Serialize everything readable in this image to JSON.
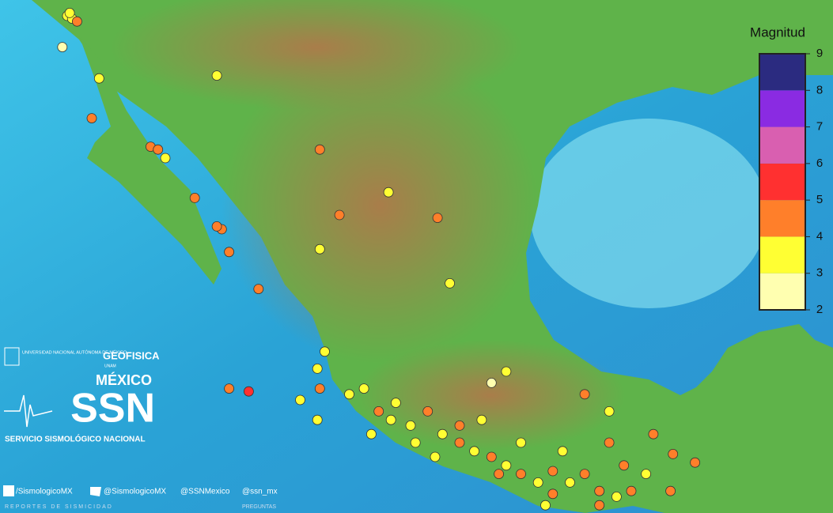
{
  "legend": {
    "title": "Magnitud",
    "lim": [
      2,
      9
    ],
    "ticks": [
      2,
      3,
      4,
      5,
      6,
      7,
      8,
      9
    ],
    "colors": [
      "#ffffb0",
      "#ffff33",
      "#ff7f2a",
      "#ff3030",
      "#d95fb0",
      "#8a2be2",
      "#2b2b80"
    ]
  },
  "logos": {
    "unam": "UNIVERSIDAD NACIONAL AUTÓNOMA DE MÉXICO",
    "geofisica": "GEOFISICA",
    "unam_short": "UNAM",
    "country": "MÉXICO",
    "ssn": "SSN",
    "ssn_name": "SERVICIO SISMOLÓGICO NACIONAL"
  },
  "footer": {
    "facebook": "/SismologicoMX",
    "twitter": "@SismologicoMX",
    "handle1": "@SSNMexico",
    "handle2": "@ssn_mx",
    "reports": "REPORTES DE SISMICIDAD",
    "questions": "PREGUNTAS"
  },
  "events": [
    {
      "lon": -117.0,
      "lat": 32.5,
      "mag": 3.2
    },
    {
      "lon": -116.8,
      "lat": 32.4,
      "mag": 3.5
    },
    {
      "lon": -116.6,
      "lat": 32.3,
      "mag": 4.1
    },
    {
      "lon": -116.9,
      "lat": 32.6,
      "mag": 3.0
    },
    {
      "lon": -117.2,
      "lat": 31.4,
      "mag": 2.5
    },
    {
      "lon": -115.7,
      "lat": 30.3,
      "mag": 3.3
    },
    {
      "lon": -110.9,
      "lat": 30.4,
      "mag": 3.4
    },
    {
      "lon": -116.0,
      "lat": 28.9,
      "mag": 4.2
    },
    {
      "lon": -113.6,
      "lat": 27.9,
      "mag": 4.3
    },
    {
      "lon": -113.3,
      "lat": 27.8,
      "mag": 4.1
    },
    {
      "lon": -113.0,
      "lat": 27.5,
      "mag": 3.6
    },
    {
      "lon": -106.7,
      "lat": 27.8,
      "mag": 4.2
    },
    {
      "lon": -111.8,
      "lat": 26.1,
      "mag": 4.0
    },
    {
      "lon": -110.7,
      "lat": 25.0,
      "mag": 4.3
    },
    {
      "lon": -110.9,
      "lat": 25.1,
      "mag": 4.5
    },
    {
      "lon": -110.4,
      "lat": 24.2,
      "mag": 4.1
    },
    {
      "lon": -109.2,
      "lat": 22.9,
      "mag": 4.4
    },
    {
      "lon": -105.9,
      "lat": 25.5,
      "mag": 4.0
    },
    {
      "lon": -103.9,
      "lat": 26.3,
      "mag": 3.2
    },
    {
      "lon": -101.9,
      "lat": 25.4,
      "mag": 4.2
    },
    {
      "lon": -106.7,
      "lat": 24.3,
      "mag": 3.3
    },
    {
      "lon": -101.4,
      "lat": 23.1,
      "mag": 3.1
    },
    {
      "lon": -110.4,
      "lat": 19.4,
      "mag": 4.3
    },
    {
      "lon": -109.6,
      "lat": 19.3,
      "mag": 5.2
    },
    {
      "lon": -107.5,
      "lat": 19.0,
      "mag": 3.2
    },
    {
      "lon": -106.8,
      "lat": 18.3,
      "mag": 3.4
    },
    {
      "lon": -106.7,
      "lat": 19.4,
      "mag": 4.1
    },
    {
      "lon": -104.9,
      "lat": 19.4,
      "mag": 3.5
    },
    {
      "lon": -104.3,
      "lat": 18.6,
      "mag": 4.2
    },
    {
      "lon": -103.6,
      "lat": 18.9,
      "mag": 3.3
    },
    {
      "lon": -103.0,
      "lat": 18.1,
      "mag": 3.6
    },
    {
      "lon": -102.3,
      "lat": 18.6,
      "mag": 4.0
    },
    {
      "lon": -101.7,
      "lat": 17.8,
      "mag": 3.4
    },
    {
      "lon": -101.0,
      "lat": 17.5,
      "mag": 4.3
    },
    {
      "lon": -100.4,
      "lat": 17.2,
      "mag": 3.2
    },
    {
      "lon": -99.7,
      "lat": 17.0,
      "mag": 4.4
    },
    {
      "lon": -99.1,
      "lat": 16.7,
      "mag": 3.7
    },
    {
      "lon": -98.5,
      "lat": 16.4,
      "mag": 4.1
    },
    {
      "lon": -97.8,
      "lat": 16.1,
      "mag": 3.3
    },
    {
      "lon": -97.2,
      "lat": 16.5,
      "mag": 4.5
    },
    {
      "lon": -96.5,
      "lat": 16.1,
      "mag": 3.8
    },
    {
      "lon": -95.9,
      "lat": 16.4,
      "mag": 4.2
    },
    {
      "lon": -95.3,
      "lat": 15.8,
      "mag": 4.0
    },
    {
      "lon": -94.6,
      "lat": 15.6,
      "mag": 3.5
    },
    {
      "lon": -94.0,
      "lat": 15.8,
      "mag": 4.1
    },
    {
      "lon": -93.4,
      "lat": 16.4,
      "mag": 3.4
    },
    {
      "lon": -92.4,
      "lat": 15.8,
      "mag": 4.0
    },
    {
      "lon": -92.3,
      "lat": 17.1,
      "mag": 4.1
    },
    {
      "lon": -91.4,
      "lat": 16.8,
      "mag": 4.3
    },
    {
      "lon": -95.9,
      "lat": 19.2,
      "mag": 4.3
    },
    {
      "lon": -94.9,
      "lat": 18.6,
      "mag": 3.3
    },
    {
      "lon": -93.1,
      "lat": 17.8,
      "mag": 4.2
    },
    {
      "lon": -99.7,
      "lat": 19.6,
      "mag": 2.6
    },
    {
      "lon": -99.1,
      "lat": 20.0,
      "mag": 3.2
    },
    {
      "lon": -106.5,
      "lat": 20.7,
      "mag": 3.1
    },
    {
      "lon": -104.6,
      "lat": 17.8,
      "mag": 3.1
    },
    {
      "lon": -102.0,
      "lat": 17.0,
      "mag": 3.0
    },
    {
      "lon": -97.5,
      "lat": 15.3,
      "mag": 3.0
    },
    {
      "lon": -95.3,
      "lat": 15.3,
      "mag": 4.6
    },
    {
      "lon": -97.2,
      "lat": 15.7,
      "mag": 4.1
    },
    {
      "lon": -99.4,
      "lat": 16.4,
      "mag": 4.6
    },
    {
      "lon": -101.0,
      "lat": 18.1,
      "mag": 4.1
    },
    {
      "lon": -98.5,
      "lat": 17.5,
      "mag": 3.6
    },
    {
      "lon": -96.8,
      "lat": 17.2,
      "mag": 3.1
    },
    {
      "lon": -94.3,
      "lat": 16.7,
      "mag": 4.2
    },
    {
      "lon": -94.9,
      "lat": 17.5,
      "mag": 4.5
    },
    {
      "lon": -103.8,
      "lat": 18.3,
      "mag": 3.1
    },
    {
      "lon": -105.5,
      "lat": 19.2,
      "mag": 3.4
    },
    {
      "lon": -106.8,
      "lat": 20.1,
      "mag": 3.1
    },
    {
      "lon": -102.8,
      "lat": 17.5,
      "mag": 3.0
    },
    {
      "lon": -100.1,
      "lat": 18.3,
      "mag": 3.2
    }
  ]
}
